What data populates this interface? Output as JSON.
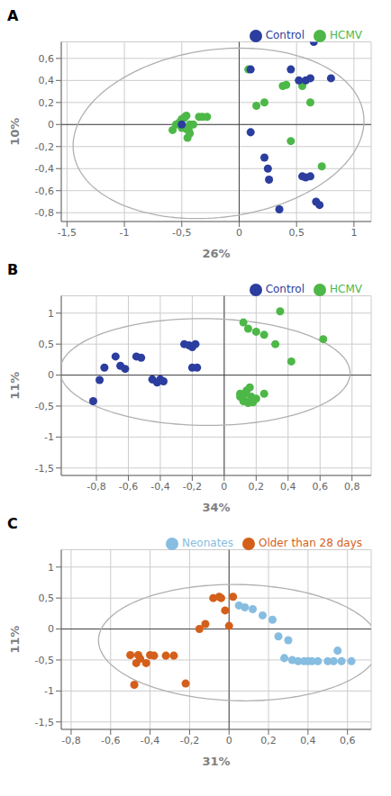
{
  "chart_data": [
    {
      "type": "scatter",
      "title": "A",
      "xlabel": "26%",
      "ylabel": "10%",
      "xlim": [
        -1.55,
        1.15
      ],
      "ylim": [
        -0.88,
        0.75
      ],
      "xticks": [
        {
          "value": -1.5,
          "label": "-1,5"
        },
        -1,
        {
          "value": -0.5,
          "label": "-0,5"
        },
        0,
        {
          "value": 0.5,
          "label": "0,5"
        },
        1
      ],
      "yticks": [
        {
          "value": -0.8,
          "label": "-0,8"
        },
        {
          "value": -0.6,
          "label": "-0,6"
        },
        {
          "value": -0.4,
          "label": "-0,4"
        },
        {
          "value": -0.2,
          "label": "-0,2"
        },
        0,
        {
          "value": 0.2,
          "label": "0,2"
        },
        {
          "value": 0.4,
          "label": "0,4"
        },
        {
          "value": 0.6,
          "label": "0,6"
        }
      ],
      "grid": true,
      "legend": "upper right",
      "ellipse": {
        "cx": -0.18,
        "cy": -0.08,
        "width": 2.55,
        "height": 1.52,
        "angle": 8,
        "color": "#b0b0b0"
      },
      "series": [
        {
          "name": "HCMV",
          "color": "#4db848",
          "x": [
            -0.58,
            -0.55,
            -0.52,
            -0.5,
            -0.5,
            -0.48,
            -0.47,
            -0.46,
            -0.46,
            -0.45,
            -0.44,
            -0.43,
            -0.43,
            -0.4,
            -0.35,
            -0.32,
            -0.28,
            0.08,
            0.15,
            0.22,
            0.38,
            0.41,
            0.45,
            0.55,
            0.62,
            0.72
          ],
          "values": [
            -0.05,
            0.0,
            0.02,
            0.05,
            -0.03,
            0.06,
            0.07,
            0.08,
            -0.04,
            -0.12,
            -0.05,
            0.0,
            -0.08,
            0.0,
            0.07,
            0.07,
            0.07,
            0.5,
            0.17,
            0.2,
            0.35,
            0.36,
            -0.15,
            0.35,
            0.2,
            -0.38
          ]
        },
        {
          "name": "Control",
          "color": "#2b3d9e",
          "x": [
            -0.5,
            0.1,
            0.1,
            0.22,
            0.25,
            0.26,
            0.35,
            0.45,
            0.52,
            0.58,
            0.62,
            0.65,
            0.55,
            0.58,
            0.62,
            0.67,
            0.7,
            0.8
          ],
          "values": [
            0.0,
            0.5,
            -0.07,
            -0.3,
            -0.4,
            -0.5,
            -0.77,
            0.5,
            0.4,
            0.4,
            0.42,
            0.75,
            -0.47,
            -0.48,
            -0.47,
            -0.7,
            -0.73,
            0.42
          ]
        }
      ]
    },
    {
      "type": "scatter",
      "title": "B",
      "xlabel": "34%",
      "ylabel": "11%",
      "xlim": [
        -1.02,
        0.92
      ],
      "ylim": [
        -1.62,
        1.28
      ],
      "xticks": [
        {
          "value": -0.8,
          "label": "-0,8"
        },
        {
          "value": -0.6,
          "label": "-0,6"
        },
        {
          "value": -0.4,
          "label": "-0,4"
        },
        {
          "value": -0.2,
          "label": "-0,2"
        },
        0,
        {
          "value": 0.2,
          "label": "0,2"
        },
        {
          "value": 0.4,
          "label": "0,4"
        },
        {
          "value": 0.6,
          "label": "0,6"
        },
        {
          "value": 0.8,
          "label": "0,8"
        }
      ],
      "yticks": [
        {
          "value": -1.5,
          "label": "-1,5"
        },
        -1,
        {
          "value": -0.5,
          "label": "-0,5"
        },
        0,
        {
          "value": 0.5,
          "label": "0,5"
        },
        1
      ],
      "grid": true,
      "legend": "upper right",
      "ellipse": {
        "cx": -0.12,
        "cy": 0.05,
        "width": 1.82,
        "height": 1.72,
        "angle": -12,
        "color": "#b0b0b0"
      },
      "series": [
        {
          "name": "HCMV",
          "color": "#4db848",
          "x": [
            0.1,
            0.1,
            0.12,
            0.12,
            0.13,
            0.15,
            0.15,
            0.16,
            0.17,
            0.18,
            0.14,
            0.16,
            0.2,
            0.25,
            0.12,
            0.15,
            0.2,
            0.25,
            0.32,
            0.35,
            0.42,
            0.62
          ],
          "values": [
            -0.3,
            -0.35,
            -0.4,
            -0.42,
            -0.3,
            -0.43,
            -0.45,
            -0.42,
            -0.35,
            -0.44,
            -0.25,
            -0.2,
            -0.38,
            -0.3,
            0.85,
            0.75,
            0.7,
            0.65,
            0.5,
            1.03,
            0.22,
            0.58
          ]
        },
        {
          "name": "Control",
          "color": "#2b3d9e",
          "x": [
            -0.82,
            -0.78,
            -0.75,
            -0.68,
            -0.65,
            -0.62,
            -0.55,
            -0.52,
            -0.45,
            -0.42,
            -0.4,
            -0.38,
            -0.25,
            -0.22,
            -0.2,
            -0.2,
            -0.18,
            -0.17
          ],
          "values": [
            -0.42,
            -0.08,
            0.12,
            0.3,
            0.15,
            0.1,
            0.3,
            0.28,
            -0.07,
            -0.12,
            -0.07,
            -0.1,
            0.5,
            0.48,
            0.45,
            0.12,
            0.5,
            0.12
          ]
        }
      ]
    },
    {
      "type": "scatter",
      "title": "C",
      "xlabel": "31%",
      "ylabel": "11%",
      "xlim": [
        -0.85,
        0.72
      ],
      "ylim": [
        -1.62,
        1.28
      ],
      "xticks": [
        {
          "value": -0.8,
          "label": "-0,8"
        },
        {
          "value": -0.6,
          "label": "-0,6"
        },
        {
          "value": -0.4,
          "label": "-0,4"
        },
        {
          "value": -0.2,
          "label": "-0,2"
        },
        0,
        {
          "value": 0.2,
          "label": "0,2"
        },
        {
          "value": 0.4,
          "label": "0,4"
        },
        {
          "value": 0.6,
          "label": "0,6"
        }
      ],
      "yticks": [
        {
          "value": -1.5,
          "label": "-1,5"
        },
        -1,
        {
          "value": -0.5,
          "label": "-0,5"
        },
        0,
        {
          "value": 0.5,
          "label": "0,5"
        },
        1
      ],
      "grid": true,
      "legend": "upper right",
      "ellipse": {
        "cx": 0.05,
        "cy": -0.22,
        "width": 1.42,
        "height": 1.88,
        "angle": 4,
        "color": "#b0b0b0"
      },
      "series": [
        {
          "name": "Neonates",
          "color": "#87bde0",
          "x": [
            0.05,
            0.08,
            0.12,
            0.17,
            0.22,
            0.25,
            0.3,
            0.28,
            0.32,
            0.35,
            0.38,
            0.4,
            0.42,
            0.45,
            0.5,
            0.53,
            0.55,
            0.57,
            0.62
          ],
          "values": [
            0.38,
            0.35,
            0.32,
            0.22,
            0.15,
            -0.12,
            -0.18,
            -0.47,
            -0.5,
            -0.52,
            -0.52,
            -0.52,
            -0.52,
            -0.52,
            -0.52,
            -0.52,
            -0.35,
            -0.52,
            -0.52
          ]
        },
        {
          "name": "Older than 28 days",
          "color": "#d45f1a",
          "x": [
            -0.5,
            -0.48,
            -0.46,
            -0.47,
            -0.45,
            -0.42,
            -0.4,
            -0.38,
            -0.32,
            -0.28,
            -0.22,
            -0.15,
            -0.12,
            -0.08,
            -0.05,
            -0.04,
            -0.02,
            0.0,
            0.02
          ],
          "values": [
            -0.42,
            -0.9,
            -0.42,
            -0.55,
            -0.48,
            -0.55,
            -0.42,
            -0.43,
            -0.43,
            -0.43,
            -0.88,
            0.0,
            0.08,
            0.5,
            0.52,
            0.5,
            0.3,
            0.05,
            0.52
          ]
        }
      ]
    }
  ]
}
